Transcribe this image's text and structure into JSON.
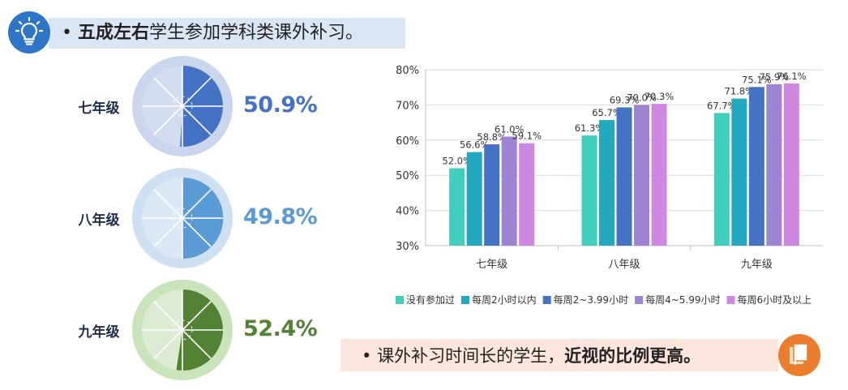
{
  "header": {
    "bullet": "•",
    "bold": "五成左右",
    "rest": "学生参加学科类课外补习。",
    "icon": "lightbulb-icon",
    "color": "#2e75c8"
  },
  "pies": [
    {
      "label": "七年级",
      "percent": 50.9,
      "display": "50.9%",
      "color": "#4472c4",
      "light": "#d4ddf0",
      "ring": "#c9d6ee"
    },
    {
      "label": "八年级",
      "percent": 49.8,
      "display": "49.8%",
      "color": "#5b9bd5",
      "light": "#dbe8f5",
      "ring": "#cfe0f2"
    },
    {
      "label": "九年级",
      "percent": 52.4,
      "display": "52.4%",
      "color": "#548235",
      "light": "#dcebd2",
      "ring": "#c9e3bb"
    }
  ],
  "chart_data": {
    "type": "bar",
    "categories": [
      "七年级",
      "八年级",
      "九年级"
    ],
    "series": [
      {
        "name": "没有参加过",
        "color": "#3fcfbc",
        "values": [
          52.0,
          61.3,
          67.7
        ]
      },
      {
        "name": "每周2小时以内",
        "color": "#22a9bf",
        "values": [
          56.6,
          65.7,
          71.8
        ]
      },
      {
        "name": "每周2~3.99小时",
        "color": "#4472c4",
        "values": [
          58.8,
          69.3,
          75.1
        ]
      },
      {
        "name": "每周4~5.99小时",
        "color": "#9d85d4",
        "values": [
          61.0,
          70.0,
          75.9
        ]
      },
      {
        "name": "每周6小时及以上",
        "color": "#cf88e2",
        "values": [
          59.1,
          70.3,
          76.1
        ]
      }
    ],
    "ylim": [
      30,
      80
    ],
    "yticks": [
      "30%",
      "40%",
      "50%",
      "60%",
      "70%",
      "80%"
    ],
    "grid": true,
    "legend": "bottom"
  },
  "footer": {
    "bullet": "•",
    "normal": "课外补习时间长的学生，",
    "bold": "近视的比例更高。",
    "icon": "document-stack-icon",
    "color": "#ec7d2c"
  }
}
